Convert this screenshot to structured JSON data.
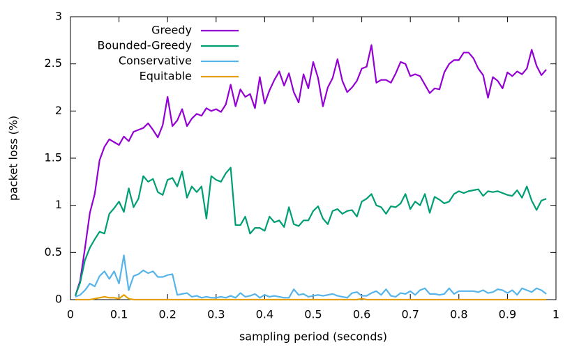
{
  "chart_data": {
    "type": "line",
    "xlabel": "sampling period (seconds)",
    "ylabel": "packet loss (%)",
    "x": [
      0.01,
      0.02,
      0.03,
      0.04,
      0.05,
      0.06,
      0.07,
      0.08,
      0.09,
      0.1,
      0.11,
      0.12,
      0.13,
      0.14,
      0.15,
      0.16,
      0.17,
      0.18,
      0.19,
      0.2,
      0.21,
      0.22,
      0.23,
      0.24,
      0.25,
      0.26,
      0.27,
      0.28,
      0.29,
      0.3,
      0.31,
      0.32,
      0.33,
      0.34,
      0.35,
      0.36,
      0.37,
      0.38,
      0.39,
      0.4,
      0.41,
      0.42,
      0.43,
      0.44,
      0.45,
      0.46,
      0.47,
      0.48,
      0.49,
      0.5,
      0.51,
      0.52,
      0.53,
      0.54,
      0.55,
      0.56,
      0.57,
      0.58,
      0.59,
      0.6,
      0.61,
      0.62,
      0.63,
      0.64,
      0.65,
      0.66,
      0.67,
      0.68,
      0.69,
      0.7,
      0.71,
      0.72,
      0.73,
      0.74,
      0.75,
      0.76,
      0.77,
      0.78,
      0.79,
      0.8,
      0.81,
      0.82,
      0.83,
      0.84,
      0.85,
      0.86,
      0.87,
      0.88,
      0.89,
      0.9,
      0.91,
      0.92,
      0.93,
      0.94,
      0.95,
      0.96,
      0.97,
      0.98
    ],
    "series": [
      {
        "name": "Greedy",
        "color": "#9400d3",
        "values": [
          0.04,
          0.2,
          0.55,
          0.92,
          1.12,
          1.48,
          1.62,
          1.7,
          1.67,
          1.64,
          1.73,
          1.68,
          1.78,
          1.8,
          1.82,
          1.87,
          1.8,
          1.72,
          1.85,
          2.15,
          1.84,
          1.9,
          2.02,
          1.84,
          1.92,
          1.97,
          1.95,
          2.03,
          2.0,
          2.02,
          1.99,
          2.07,
          2.28,
          2.05,
          2.23,
          2.15,
          2.18,
          2.03,
          2.36,
          2.08,
          2.22,
          2.33,
          2.42,
          2.27,
          2.4,
          2.2,
          2.09,
          2.39,
          2.24,
          2.52,
          2.35,
          2.05,
          2.25,
          2.35,
          2.55,
          2.32,
          2.2,
          2.25,
          2.32,
          2.45,
          2.47,
          2.7,
          2.3,
          2.33,
          2.33,
          2.3,
          2.4,
          2.52,
          2.5,
          2.37,
          2.39,
          2.37,
          2.28,
          2.19,
          2.24,
          2.23,
          2.41,
          2.5,
          2.54,
          2.54,
          2.62,
          2.62,
          2.56,
          2.45,
          2.38,
          2.14,
          2.36,
          2.32,
          2.24,
          2.41,
          2.37,
          2.42,
          2.39,
          2.45,
          2.65,
          2.48,
          2.38,
          2.44
        ]
      },
      {
        "name": "Bounded-Greedy",
        "color": "#009e73",
        "values": [
          0.04,
          0.18,
          0.42,
          0.55,
          0.64,
          0.72,
          0.7,
          0.91,
          0.97,
          1.04,
          0.93,
          1.18,
          0.98,
          1.07,
          1.31,
          1.25,
          1.28,
          1.14,
          1.11,
          1.27,
          1.29,
          1.2,
          1.36,
          1.08,
          1.2,
          1.14,
          1.2,
          0.86,
          1.31,
          1.27,
          1.25,
          1.34,
          1.4,
          0.79,
          0.79,
          0.88,
          0.7,
          0.76,
          0.76,
          0.73,
          0.88,
          0.82,
          0.84,
          0.77,
          0.98,
          0.8,
          0.78,
          0.84,
          0.84,
          0.94,
          0.99,
          0.86,
          0.8,
          0.94,
          0.96,
          0.91,
          0.94,
          0.95,
          0.88,
          1.04,
          1.07,
          1.12,
          1.0,
          0.98,
          0.91,
          0.99,
          0.98,
          1.02,
          1.12,
          0.96,
          1.04,
          1.0,
          1.12,
          0.92,
          1.09,
          1.06,
          1.02,
          1.04,
          1.12,
          1.15,
          1.13,
          1.15,
          1.16,
          1.17,
          1.1,
          1.15,
          1.14,
          1.15,
          1.13,
          1.11,
          1.1,
          1.16,
          1.08,
          1.2,
          1.05,
          0.95,
          1.05,
          1.07
        ]
      },
      {
        "name": "Conservative",
        "color": "#56b4e9",
        "values": [
          0.03,
          0.05,
          0.1,
          0.17,
          0.14,
          0.25,
          0.3,
          0.22,
          0.3,
          0.17,
          0.47,
          0.1,
          0.25,
          0.27,
          0.31,
          0.28,
          0.3,
          0.24,
          0.24,
          0.26,
          0.27,
          0.05,
          0.06,
          0.07,
          0.03,
          0.04,
          0.02,
          0.03,
          0.02,
          0.02,
          0.03,
          0.02,
          0.04,
          0.02,
          0.07,
          0.03,
          0.04,
          0.06,
          0.02,
          0.05,
          0.03,
          0.04,
          0.03,
          0.02,
          0.02,
          0.11,
          0.05,
          0.06,
          0.03,
          0.04,
          0.05,
          0.04,
          0.05,
          0.06,
          0.04,
          0.03,
          0.02,
          0.07,
          0.08,
          0.04,
          0.04,
          0.07,
          0.09,
          0.05,
          0.11,
          0.04,
          0.03,
          0.07,
          0.06,
          0.09,
          0.05,
          0.1,
          0.12,
          0.06,
          0.06,
          0.05,
          0.06,
          0.12,
          0.06,
          0.09,
          0.09,
          0.09,
          0.09,
          0.08,
          0.1,
          0.07,
          0.08,
          0.11,
          0.1,
          0.07,
          0.1,
          0.05,
          0.12,
          0.1,
          0.08,
          0.12,
          0.1,
          0.06
        ]
      },
      {
        "name": "Equitable",
        "color": "#e69f00",
        "values": [
          0,
          0,
          0,
          0,
          0.01,
          0.02,
          0.03,
          0.02,
          0.02,
          0.01,
          0.05,
          0.01,
          0,
          0,
          0,
          0,
          0,
          0,
          0,
          0,
          0,
          0,
          0,
          0,
          0,
          0,
          0,
          0,
          0,
          0,
          0,
          0,
          0,
          0,
          0,
          0,
          0,
          0,
          0,
          0,
          0,
          0,
          0,
          0,
          0,
          0,
          0,
          0,
          0,
          0,
          0,
          0,
          0,
          0,
          0,
          0,
          0,
          0,
          0,
          0.01,
          0,
          0,
          0,
          0,
          0,
          0,
          0,
          0,
          0,
          0,
          0,
          0,
          0,
          0,
          0,
          0,
          0,
          0,
          0,
          0,
          0,
          0,
          0,
          0,
          0,
          0,
          0,
          0,
          0,
          0,
          0,
          0,
          0,
          0,
          0,
          0,
          0,
          0
        ]
      }
    ],
    "xlim": [
      0,
      1
    ],
    "xticks": [
      0,
      0.1,
      0.2,
      0.3,
      0.4,
      0.5,
      0.6,
      0.7,
      0.8,
      0.9,
      1
    ],
    "ylim": [
      0,
      3
    ],
    "yticks": [
      0,
      0.5,
      1,
      1.5,
      2,
      2.5,
      3
    ],
    "legend": "top-left"
  }
}
